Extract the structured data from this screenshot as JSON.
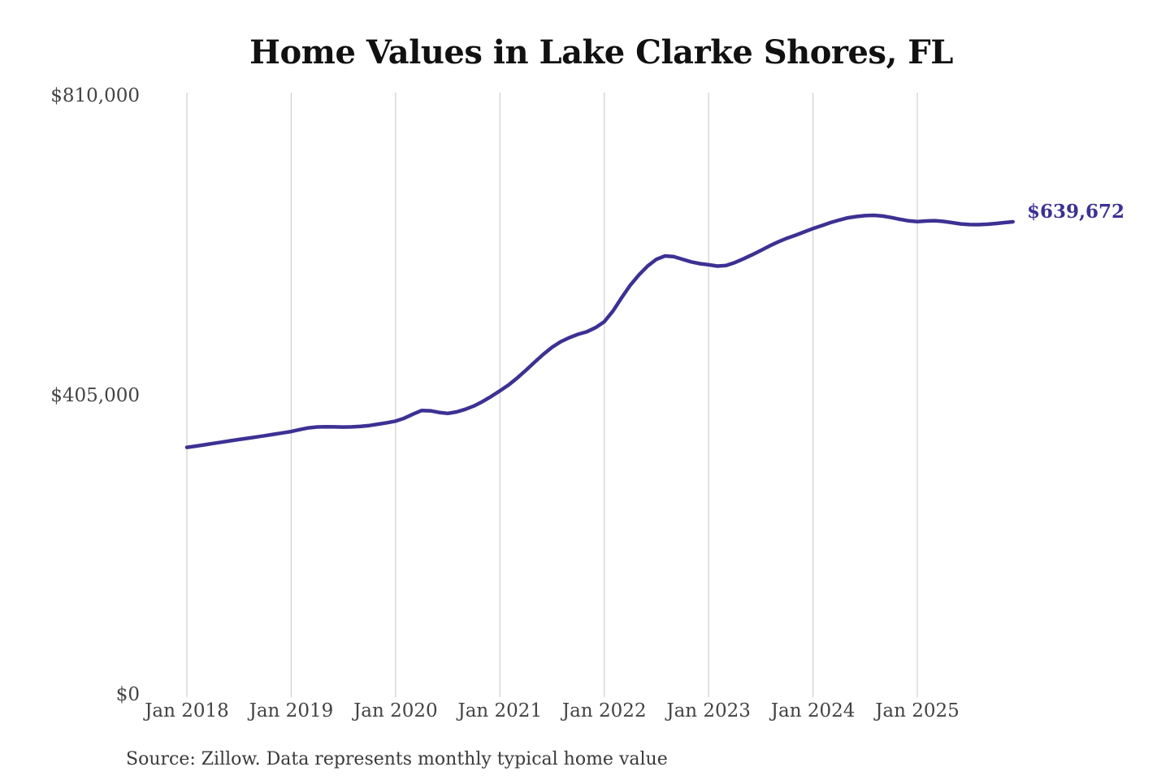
{
  "chart": {
    "title": "Home Values in Lake Clarke Shores, FL",
    "end_label": "$639,672",
    "source": "Source: Zillow. Data represents monthly typical home value"
  },
  "colors": {
    "line": "#3c3193",
    "end_label": "#3c3193",
    "gridline": "#cfcfcf",
    "axis_text": "#434343",
    "title_text": "#111111",
    "background": "#ffffff"
  },
  "chart_data": {
    "type": "line",
    "title": "Home Values in Lake Clarke Shores, FL",
    "unit": "USD",
    "frequency": "monthly",
    "x_start": "2018-01",
    "x_end": "2025-12",
    "grid": "vertical-only",
    "legend": "none",
    "ylim": [
      0,
      810000
    ],
    "y_ticks": [
      {
        "value": 810000,
        "label": "$810,000"
      },
      {
        "value": 405000,
        "label": "$405,000"
      },
      {
        "value": 0,
        "label": "$0"
      }
    ],
    "x_tick_labels": [
      "Jan 2018",
      "Jan 2019",
      "Jan 2020",
      "Jan 2021",
      "Jan 2022",
      "Jan 2023",
      "Jan 2024",
      "Jan 2025"
    ],
    "end_value": 639672,
    "end_value_label": "$639,672",
    "x_months": [
      "2018-01",
      "2018-02",
      "2018-03",
      "2018-04",
      "2018-05",
      "2018-06",
      "2018-07",
      "2018-08",
      "2018-09",
      "2018-10",
      "2018-11",
      "2018-12",
      "2019-01",
      "2019-02",
      "2019-03",
      "2019-04",
      "2019-05",
      "2019-06",
      "2019-07",
      "2019-08",
      "2019-09",
      "2019-10",
      "2019-11",
      "2019-12",
      "2020-01",
      "2020-02",
      "2020-03",
      "2020-04",
      "2020-05",
      "2020-06",
      "2020-07",
      "2020-08",
      "2020-09",
      "2020-10",
      "2020-11",
      "2020-12",
      "2021-01",
      "2021-02",
      "2021-03",
      "2021-04",
      "2021-05",
      "2021-06",
      "2021-07",
      "2021-08",
      "2021-09",
      "2021-10",
      "2021-11",
      "2021-12",
      "2022-01",
      "2022-02",
      "2022-03",
      "2022-04",
      "2022-05",
      "2022-06",
      "2022-07",
      "2022-08",
      "2022-09",
      "2022-10",
      "2022-11",
      "2022-12",
      "2023-01",
      "2023-02",
      "2023-03",
      "2023-04",
      "2023-05",
      "2023-06",
      "2023-07",
      "2023-08",
      "2023-09",
      "2023-10",
      "2023-11",
      "2023-12",
      "2024-01",
      "2024-02",
      "2024-03",
      "2024-04",
      "2024-05",
      "2024-06",
      "2024-07",
      "2024-08",
      "2024-09",
      "2024-10",
      "2024-11",
      "2024-12",
      "2025-01",
      "2025-02",
      "2025-03",
      "2025-04",
      "2025-05",
      "2025-06",
      "2025-07",
      "2025-08",
      "2025-09",
      "2025-10",
      "2025-11",
      "2025-12"
    ],
    "series": [
      {
        "name": "Typical home value",
        "values": [
          334500,
          336200,
          338000,
          339800,
          341600,
          343400,
          345200,
          346900,
          348600,
          350400,
          352200,
          354100,
          356000,
          358600,
          360900,
          362100,
          362400,
          362200,
          362000,
          362300,
          362900,
          364100,
          366000,
          367800,
          370000,
          374000,
          379500,
          384500,
          384000,
          381800,
          380500,
          382500,
          386000,
          390500,
          396500,
          403500,
          411000,
          419000,
          428500,
          439000,
          450000,
          460500,
          470000,
          477500,
          483000,
          487500,
          491000,
          496500,
          504500,
          519000,
          537000,
          554000,
          568000,
          580000,
          589000,
          593500,
          592500,
          589000,
          585500,
          583000,
          581500,
          579800,
          580500,
          584500,
          589500,
          595000,
          601000,
          607000,
          612500,
          617500,
          621500,
          626000,
          630500,
          634500,
          638500,
          642000,
          645000,
          646800,
          648000,
          648400,
          647500,
          645500,
          643000,
          641000,
          640000,
          640800,
          641200,
          640200,
          638500,
          636800,
          635900,
          635800,
          636300,
          637300,
          638500,
          639672
        ]
      }
    ]
  }
}
